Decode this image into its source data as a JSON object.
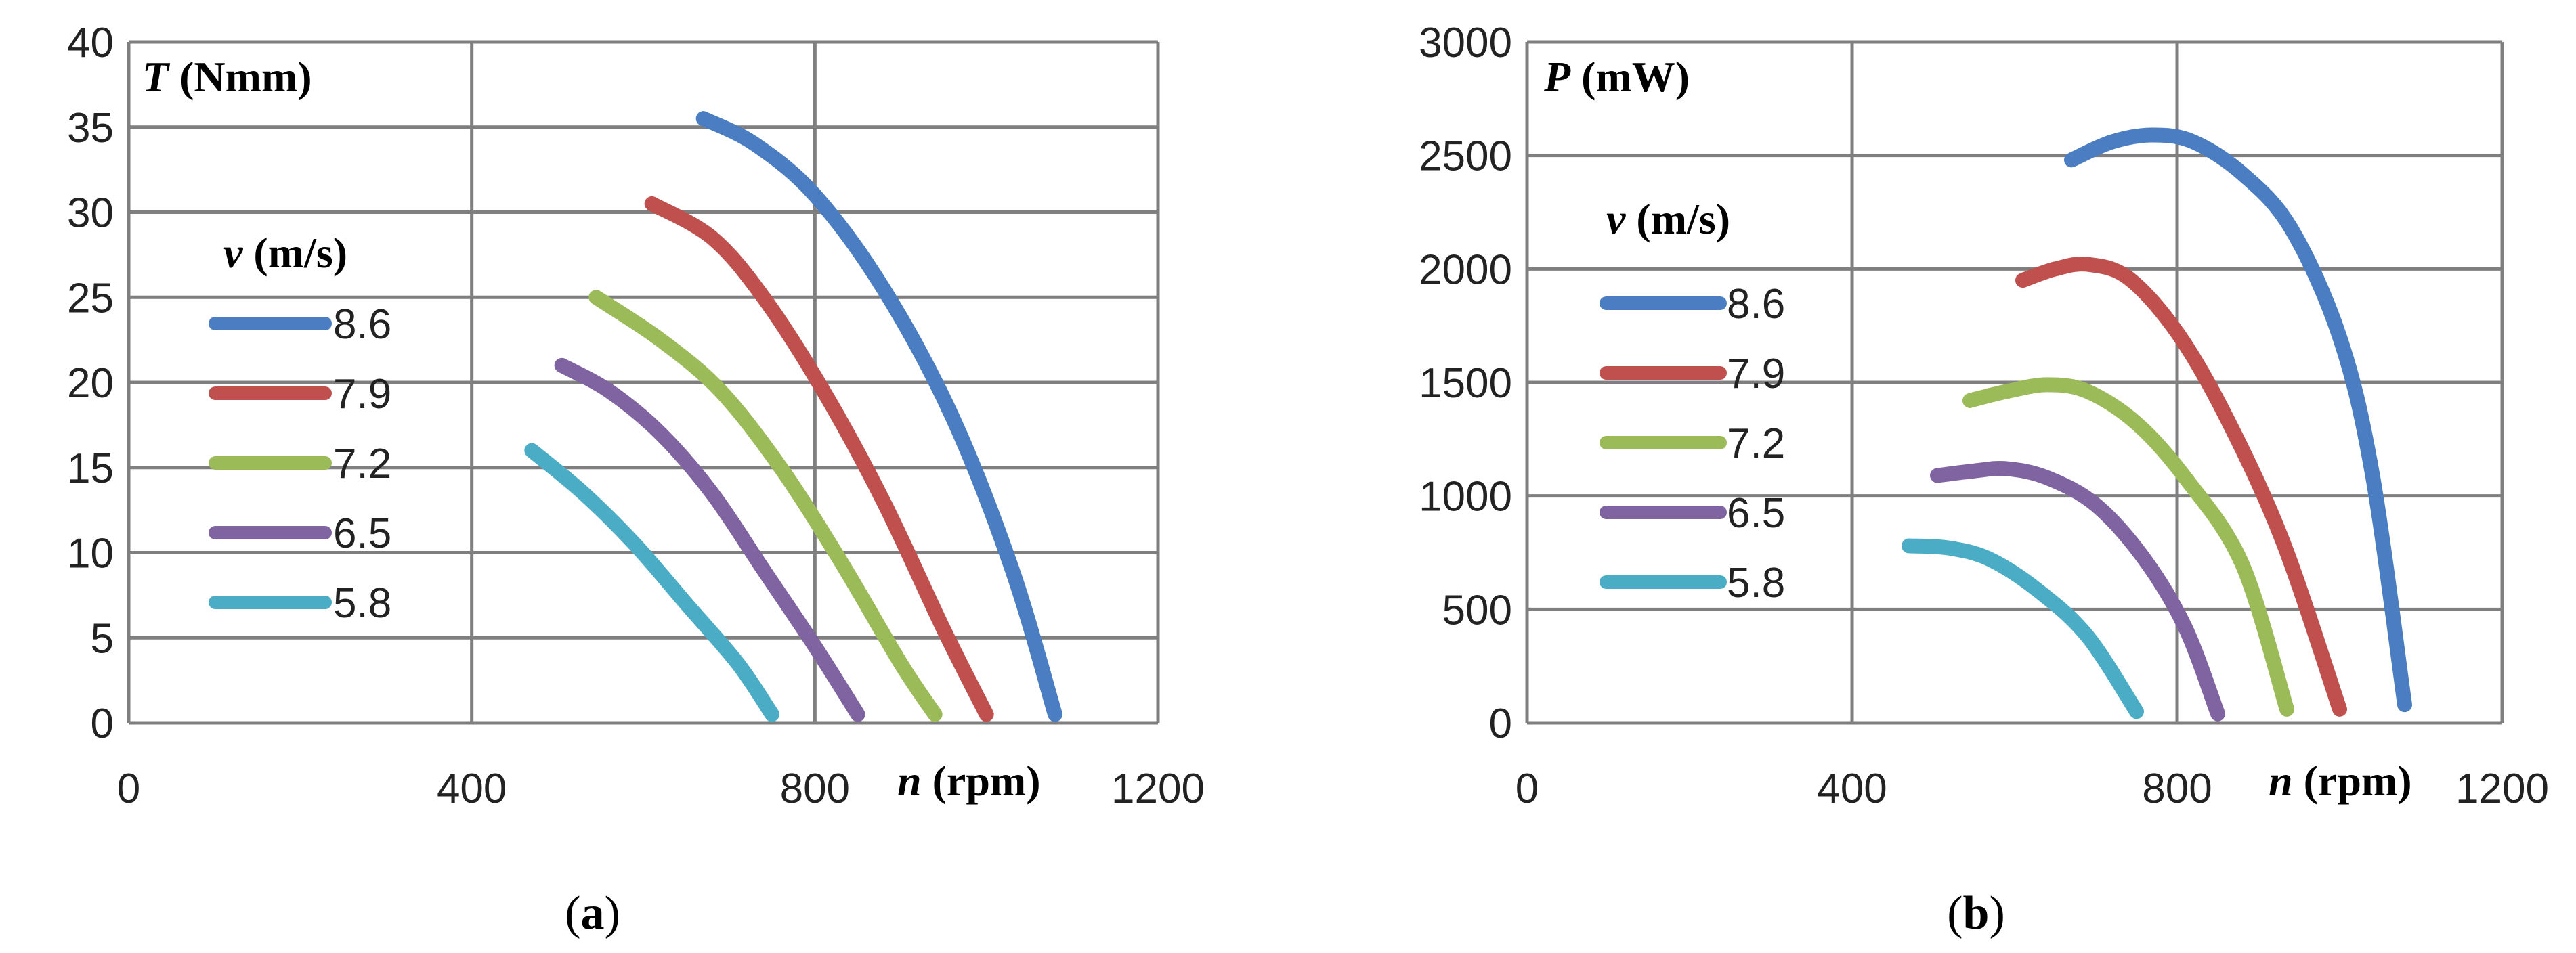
{
  "chart_data": [
    {
      "type": "line",
      "panel_label": "a",
      "title": "",
      "ylabel_var": "T",
      "ylabel_unit": " (Nmm)",
      "xlabel_var": "n",
      "xlabel_unit": " (rpm)",
      "xlim": [
        0,
        1200
      ],
      "ylim": [
        0,
        40
      ],
      "xticks": [
        0,
        400,
        800,
        1200
      ],
      "yticks": [
        0,
        5,
        10,
        15,
        20,
        25,
        30,
        35,
        40
      ],
      "legend_title_var": "v",
      "legend_title_unit": " (m/s)",
      "series": [
        {
          "name": "8.6",
          "color": "#4a7dc1",
          "points": [
            [
              670,
              35.5
            ],
            [
              730,
              34
            ],
            [
              800,
              31
            ],
            [
              880,
              25.5
            ],
            [
              960,
              18
            ],
            [
              1030,
              9
            ],
            [
              1080,
              0.5
            ]
          ]
        },
        {
          "name": "7.9",
          "color": "#c0504d",
          "points": [
            [
              610,
              30.5
            ],
            [
              680,
              28.5
            ],
            [
              740,
              25
            ],
            [
              810,
              19.5
            ],
            [
              880,
              13
            ],
            [
              950,
              5.5
            ],
            [
              1000,
              0.5
            ]
          ]
        },
        {
          "name": "7.2",
          "color": "#9bbb59",
          "points": [
            [
              545,
              25
            ],
            [
              620,
              22.5
            ],
            [
              690,
              19.5
            ],
            [
              760,
              15
            ],
            [
              830,
              9.5
            ],
            [
              900,
              3.5
            ],
            [
              940,
              0.5
            ]
          ]
        },
        {
          "name": "6.5",
          "color": "#8064a2",
          "points": [
            [
              505,
              21
            ],
            [
              560,
              19.5
            ],
            [
              620,
              17
            ],
            [
              680,
              13.5
            ],
            [
              740,
              9
            ],
            [
              800,
              4.5
            ],
            [
              850,
              0.5
            ]
          ]
        },
        {
          "name": "5.8",
          "color": "#4bacc6",
          "points": [
            [
              470,
              16
            ],
            [
              530,
              13.5
            ],
            [
              590,
              10.5
            ],
            [
              650,
              7
            ],
            [
              710,
              3.5
            ],
            [
              750,
              0.5
            ]
          ]
        }
      ]
    },
    {
      "type": "line",
      "panel_label": "b",
      "title": "",
      "ylabel_var": "P",
      "ylabel_unit": " (mW)",
      "xlabel_var": "n",
      "xlabel_unit": " (rpm)",
      "xlim": [
        0,
        1200
      ],
      "ylim": [
        0,
        3000
      ],
      "xticks": [
        0,
        400,
        800,
        1200
      ],
      "yticks": [
        0,
        500,
        1000,
        1500,
        2000,
        2500,
        3000
      ],
      "legend_title_var": "v",
      "legend_title_unit": " (m/s)",
      "series": [
        {
          "name": "8.6",
          "color": "#4a7dc1",
          "points": [
            [
              670,
              2480
            ],
            [
              720,
              2560
            ],
            [
              770,
              2590
            ],
            [
              820,
              2560
            ],
            [
              880,
              2420
            ],
            [
              940,
              2180
            ],
            [
              1000,
              1700
            ],
            [
              1040,
              1100
            ],
            [
              1080,
              80
            ]
          ]
        },
        {
          "name": "7.9",
          "color": "#c0504d",
          "points": [
            [
              610,
              1950
            ],
            [
              650,
              2000
            ],
            [
              690,
              2020
            ],
            [
              740,
              1960
            ],
            [
              800,
              1720
            ],
            [
              860,
              1350
            ],
            [
              930,
              800
            ],
            [
              1000,
              60
            ]
          ]
        },
        {
          "name": "7.2",
          "color": "#9bbb59",
          "points": [
            [
              545,
              1420
            ],
            [
              590,
              1460
            ],
            [
              640,
              1490
            ],
            [
              690,
              1460
            ],
            [
              750,
              1320
            ],
            [
              810,
              1080
            ],
            [
              880,
              700
            ],
            [
              935,
              60
            ]
          ]
        },
        {
          "name": "6.5",
          "color": "#8064a2",
          "points": [
            [
              505,
              1090
            ],
            [
              550,
              1110
            ],
            [
              590,
              1120
            ],
            [
              640,
              1080
            ],
            [
              700,
              960
            ],
            [
              760,
              720
            ],
            [
              810,
              420
            ],
            [
              850,
              40
            ]
          ]
        },
        {
          "name": "5.8",
          "color": "#4bacc6",
          "points": [
            [
              470,
              780
            ],
            [
              520,
              770
            ],
            [
              570,
              720
            ],
            [
              630,
              580
            ],
            [
              690,
              380
            ],
            [
              750,
              50
            ]
          ]
        }
      ]
    }
  ],
  "captions": [
    "a",
    "b"
  ]
}
